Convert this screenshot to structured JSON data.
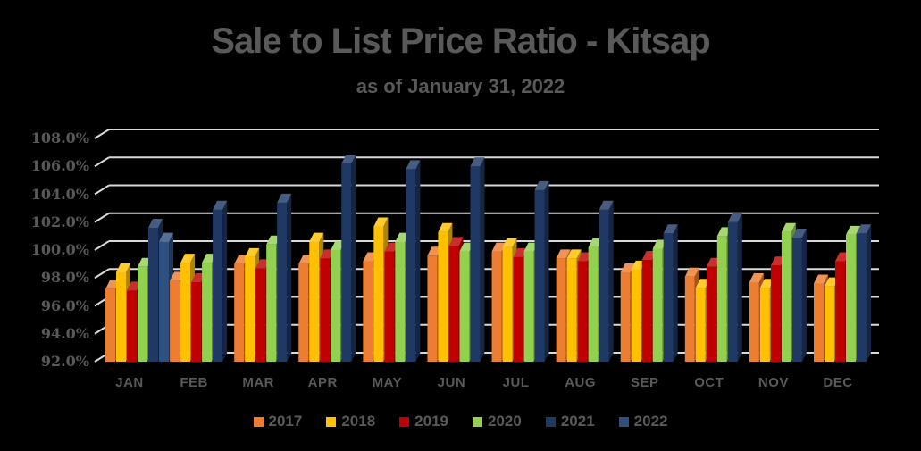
{
  "colors": {
    "background": "#000000",
    "text": "#595959",
    "gridline": "#D9D9D9"
  },
  "chart_data": {
    "type": "bar",
    "style": "3d-clustered-column",
    "title": "Sale to List Price Ratio - Kitsap",
    "subtitle": "as of January 31, 2022",
    "categories": [
      "JAN",
      "FEB",
      "MAR",
      "APR",
      "MAY",
      "JUN",
      "JUL",
      "AUG",
      "SEP",
      "OCT",
      "NOV",
      "DEC"
    ],
    "series": [
      {
        "name": "2017",
        "color": "#ED7D31",
        "values": [
          97.2,
          97.8,
          99.0,
          99.0,
          99.2,
          99.6,
          99.9,
          99.4,
          98.4,
          98.1,
          97.7,
          97.6
        ]
      },
      {
        "name": "2018",
        "color": "#FFC000",
        "values": [
          98.4,
          99.1,
          99.5,
          100.6,
          101.7,
          101.3,
          100.2,
          99.4,
          98.6,
          97.3,
          97.3,
          97.4
        ]
      },
      {
        "name": "2019",
        "color": "#C00000",
        "values": [
          97.1,
          97.7,
          98.7,
          99.4,
          99.9,
          100.3,
          99.5,
          99.2,
          99.3,
          98.8,
          98.9,
          99.2
        ]
      },
      {
        "name": "2020",
        "color": "#92D050",
        "values": [
          98.8,
          99.1,
          100.4,
          100.0,
          100.6,
          99.9,
          99.9,
          100.2,
          100.1,
          101.0,
          101.3,
          101.1
        ]
      },
      {
        "name": "2021",
        "color": "#1F3864",
        "values": [
          101.6,
          102.9,
          103.4,
          106.2,
          105.8,
          106.0,
          104.3,
          102.9,
          101.2,
          102.0,
          100.9,
          101.2
        ]
      },
      {
        "name": "2022",
        "color": "#2E5080",
        "values": [
          100.6,
          null,
          null,
          null,
          null,
          null,
          null,
          null,
          null,
          null,
          null,
          null
        ]
      }
    ],
    "xlabel": "",
    "ylabel": "",
    "y_axis": {
      "min": 92,
      "max": 108,
      "step": 2,
      "tick_labels": [
        "108.0%",
        "106.0%",
        "104.0%",
        "102.0%",
        "100.0%",
        "98.0%",
        "96.0%",
        "94.0%",
        "92.0%"
      ]
    },
    "grid": true,
    "legend_position": "bottom"
  }
}
